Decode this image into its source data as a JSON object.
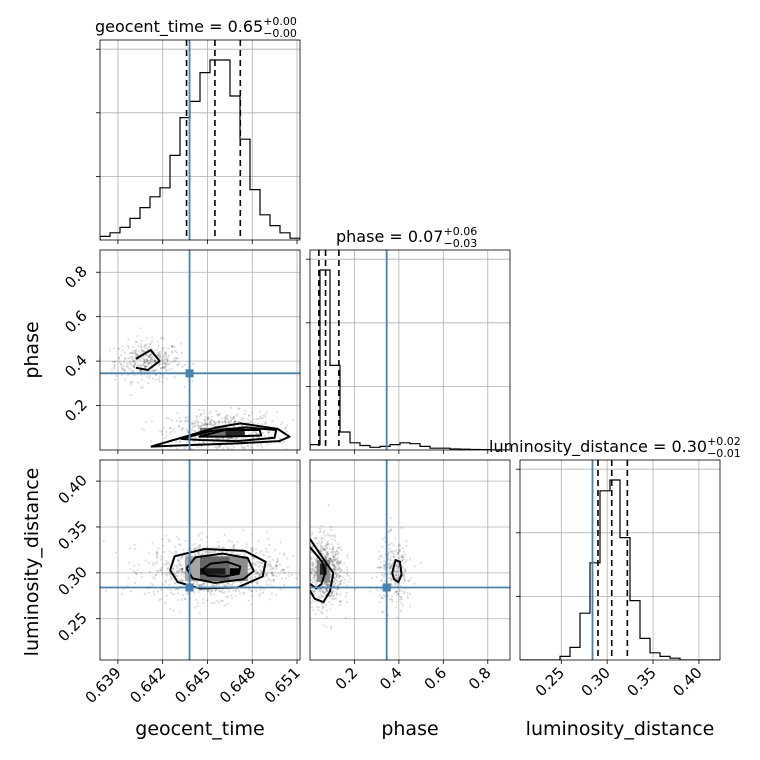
{
  "chart_data": {
    "type": "corner",
    "parameters": [
      "geocent_time",
      "phase",
      "luminosity_distance"
    ],
    "titles": [
      {
        "name": "geocent_time",
        "median": "0.65",
        "plus": "+0.00",
        "minus": "−0.00"
      },
      {
        "name": "phase",
        "median": "0.07",
        "plus": "+0.06",
        "minus": "−0.03"
      },
      {
        "name": "luminosity_distance",
        "median": "0.30",
        "plus": "+0.02",
        "minus": "−0.01"
      }
    ],
    "injected_values": {
      "geocent_time": 0.6438,
      "phase": 0.345,
      "luminosity_distance": 0.284
    },
    "ranges": {
      "geocent_time": [
        0.6378,
        0.6512
      ],
      "phase": [
        0.0,
        0.9
      ],
      "luminosity_distance": [
        0.205,
        0.423
      ]
    },
    "ticks": {
      "geocent_time": {
        "values": [
          0.639,
          0.642,
          0.645,
          0.648,
          0.651
        ],
        "labels": [
          "0.639",
          "0.642",
          "0.645",
          "0.648",
          "0.651"
        ]
      },
      "phase": {
        "values": [
          0.2,
          0.4,
          0.6,
          0.8
        ],
        "labels": [
          "0.2",
          "0.4",
          "0.6",
          "0.8"
        ]
      },
      "luminosity_distance": {
        "values": [
          0.25,
          0.3,
          0.35,
          0.4
        ],
        "labels": [
          "0.25",
          "0.30",
          "0.35",
          "0.40"
        ]
      }
    },
    "grid": true,
    "truth_color": "#4682b4",
    "histograms": {
      "geocent_time": {
        "bin_edges": [
          0.6378,
          0.63847,
          0.63914,
          0.63981,
          0.64048,
          0.64115,
          0.64182,
          0.64249,
          0.64316,
          0.64383,
          0.6445,
          0.64517,
          0.64584,
          0.64651,
          0.64718,
          0.64785,
          0.64852,
          0.64919,
          0.64986,
          0.65053,
          0.6512
        ],
        "counts": [
          0.02,
          0.04,
          0.07,
          0.12,
          0.18,
          0.24,
          0.29,
          0.47,
          0.68,
          0.77,
          0.93,
          1.0,
          1.0,
          0.8,
          0.56,
          0.28,
          0.14,
          0.08,
          0.04,
          0.01
        ],
        "quantiles": [
          0.6436,
          0.6455,
          0.6472
        ]
      },
      "phase": {
        "bin_edges": [
          0.0,
          0.045,
          0.09,
          0.135,
          0.18,
          0.225,
          0.27,
          0.315,
          0.36,
          0.405,
          0.45,
          0.495,
          0.54,
          0.585,
          0.63,
          0.675,
          0.72,
          0.765,
          0.81,
          0.855,
          0.9
        ],
        "counts": [
          0.03,
          1.0,
          0.47,
          0.1,
          0.04,
          0.025,
          0.015,
          0.02,
          0.03,
          0.04,
          0.035,
          0.02,
          0.01,
          0.01,
          0.006,
          0.004,
          0.003,
          0.002,
          0.001,
          0.0
        ],
        "quantiles": [
          0.04,
          0.07,
          0.13
        ]
      },
      "luminosity_distance": {
        "bin_edges": [
          0.205,
          0.2159,
          0.2268,
          0.2377,
          0.2486,
          0.2595,
          0.2704,
          0.2813,
          0.2922,
          0.3031,
          0.314,
          0.3249,
          0.3358,
          0.3467,
          0.3576,
          0.3685,
          0.3794,
          0.3903,
          0.4012,
          0.4121,
          0.423
        ],
        "counts": [
          0.0,
          0.0,
          0.0,
          0.0,
          0.02,
          0.07,
          0.26,
          0.54,
          0.94,
          1.0,
          0.68,
          0.33,
          0.12,
          0.04,
          0.02,
          0.01,
          0.0,
          0.0,
          0.0,
          0.0
        ],
        "quantiles": [
          0.29,
          0.305,
          0.322
        ]
      }
    },
    "scatter_clusters": [
      {
        "x": "geocent_time",
        "y": "phase",
        "mx": 0.641,
        "my": 0.4,
        "sx": 0.0011,
        "sy": 0.045,
        "n": 380
      },
      {
        "x": "geocent_time",
        "y": "phase",
        "mx": 0.646,
        "my": 0.08,
        "sx": 0.0018,
        "sy": 0.045,
        "n": 620
      },
      {
        "x": "geocent_time",
        "y": "luminosity_distance",
        "mx": 0.6455,
        "my": 0.303,
        "sx": 0.0022,
        "sy": 0.015,
        "n": 1100
      },
      {
        "x": "phase",
        "y": "luminosity_distance",
        "mx": 0.07,
        "my": 0.302,
        "sx": 0.04,
        "sy": 0.02,
        "n": 650
      },
      {
        "x": "phase",
        "y": "luminosity_distance",
        "mx": 0.38,
        "my": 0.3,
        "sx": 0.04,
        "sy": 0.018,
        "n": 280
      }
    ],
    "density_cells": [
      {
        "x": "geocent_time",
        "y": "phase",
        "x0": 0.6445,
        "x1": 0.6462,
        "y0": 0.06,
        "y1": 0.1,
        "level": 0.55
      },
      {
        "x": "geocent_time",
        "y": "phase",
        "x0": 0.6462,
        "x1": 0.6475,
        "y0": 0.06,
        "y1": 0.1,
        "level": 0.85
      },
      {
        "x": "geocent_time",
        "y": "luminosity_distance",
        "x0": 0.6435,
        "x1": 0.6445,
        "y0": 0.291,
        "y1": 0.318,
        "level": 0.35
      },
      {
        "x": "geocent_time",
        "y": "luminosity_distance",
        "x0": 0.6445,
        "x1": 0.6465,
        "y0": 0.291,
        "y1": 0.318,
        "level": 0.6
      },
      {
        "x": "geocent_time",
        "y": "luminosity_distance",
        "x0": 0.6465,
        "x1": 0.6477,
        "y0": 0.291,
        "y1": 0.318,
        "level": 0.45
      },
      {
        "x": "geocent_time",
        "y": "luminosity_distance",
        "x0": 0.6445,
        "x1": 0.6462,
        "y0": 0.298,
        "y1": 0.305,
        "level": 0.9
      },
      {
        "x": "geocent_time",
        "y": "luminosity_distance",
        "x0": 0.6465,
        "x1": 0.6471,
        "y0": 0.298,
        "y1": 0.305,
        "level": 1.0
      },
      {
        "x": "phase",
        "y": "luminosity_distance",
        "x0": 0.03,
        "x1": 0.09,
        "y0": 0.29,
        "y1": 0.314,
        "level": 0.45
      },
      {
        "x": "phase",
        "y": "luminosity_distance",
        "x0": 0.045,
        "x1": 0.075,
        "y0": 0.298,
        "y1": 0.31,
        "level": 0.85
      }
    ],
    "contours": [
      {
        "x": "geocent_time",
        "y": "phase",
        "points": [
          [
            0.6402,
            0.37
          ],
          [
            0.641,
            0.36
          ],
          [
            0.6418,
            0.4
          ],
          [
            0.6412,
            0.45
          ],
          [
            0.6402,
            0.41
          ]
        ]
      },
      {
        "x": "geocent_time",
        "y": "phase",
        "points": [
          [
            0.6412,
            0.015
          ],
          [
            0.643,
            0.05
          ],
          [
            0.6455,
            0.1
          ],
          [
            0.6472,
            0.12
          ],
          [
            0.6497,
            0.095
          ],
          [
            0.6505,
            0.06
          ],
          [
            0.6498,
            0.04
          ],
          [
            0.647,
            0.03
          ],
          [
            0.643,
            0.02
          ],
          [
            0.6412,
            0.015
          ]
        ]
      },
      {
        "x": "geocent_time",
        "y": "phase",
        "points": [
          [
            0.6432,
            0.05
          ],
          [
            0.6452,
            0.085
          ],
          [
            0.6475,
            0.102
          ],
          [
            0.6496,
            0.09
          ],
          [
            0.6495,
            0.055
          ],
          [
            0.647,
            0.04
          ],
          [
            0.6445,
            0.045
          ],
          [
            0.6432,
            0.05
          ]
        ]
      },
      {
        "x": "geocent_time",
        "y": "phase",
        "points": [
          [
            0.6444,
            0.06
          ],
          [
            0.6462,
            0.09
          ],
          [
            0.6485,
            0.09
          ],
          [
            0.6486,
            0.065
          ],
          [
            0.6462,
            0.06
          ],
          [
            0.6444,
            0.06
          ]
        ]
      },
      {
        "x": "geocent_time",
        "y": "luminosity_distance",
        "points": [
          [
            0.6425,
            0.303
          ],
          [
            0.6428,
            0.318
          ],
          [
            0.6448,
            0.326
          ],
          [
            0.6475,
            0.324
          ],
          [
            0.6489,
            0.312
          ],
          [
            0.6487,
            0.296
          ],
          [
            0.647,
            0.284
          ],
          [
            0.6445,
            0.283
          ],
          [
            0.643,
            0.29
          ],
          [
            0.6425,
            0.303
          ]
        ]
      },
      {
        "x": "geocent_time",
        "y": "luminosity_distance",
        "points": [
          [
            0.6436,
            0.305
          ],
          [
            0.6442,
            0.317
          ],
          [
            0.646,
            0.321
          ],
          [
            0.6477,
            0.316
          ],
          [
            0.6481,
            0.302
          ],
          [
            0.6474,
            0.293
          ],
          [
            0.6455,
            0.289
          ],
          [
            0.644,
            0.294
          ],
          [
            0.6436,
            0.305
          ]
        ]
      },
      {
        "x": "geocent_time",
        "y": "luminosity_distance",
        "points": [
          [
            0.6446,
            0.303
          ],
          [
            0.6452,
            0.31
          ],
          [
            0.6463,
            0.312
          ],
          [
            0.6472,
            0.307
          ],
          [
            0.6471,
            0.299
          ],
          [
            0.6461,
            0.296
          ],
          [
            0.645,
            0.297
          ],
          [
            0.6446,
            0.303
          ]
        ]
      },
      {
        "x": "phase",
        "y": "luminosity_distance",
        "points": [
          [
            0.0,
            0.337
          ],
          [
            0.075,
            0.31
          ],
          [
            0.105,
            0.3
          ],
          [
            0.09,
            0.28
          ],
          [
            0.06,
            0.268
          ],
          [
            0.02,
            0.272
          ],
          [
            0.0,
            0.281
          ]
        ]
      },
      {
        "x": "phase",
        "y": "luminosity_distance",
        "points": [
          [
            0.0,
            0.328
          ],
          [
            0.055,
            0.312
          ],
          [
            0.068,
            0.3
          ],
          [
            0.052,
            0.288
          ],
          [
            0.028,
            0.283
          ],
          [
            0.0,
            0.288
          ]
        ]
      },
      {
        "x": "phase",
        "y": "luminosity_distance",
        "points": [
          [
            0.37,
            0.3
          ],
          [
            0.385,
            0.314
          ],
          [
            0.405,
            0.312
          ],
          [
            0.412,
            0.298
          ],
          [
            0.398,
            0.29
          ],
          [
            0.378,
            0.293
          ],
          [
            0.37,
            0.3
          ]
        ]
      }
    ]
  }
}
